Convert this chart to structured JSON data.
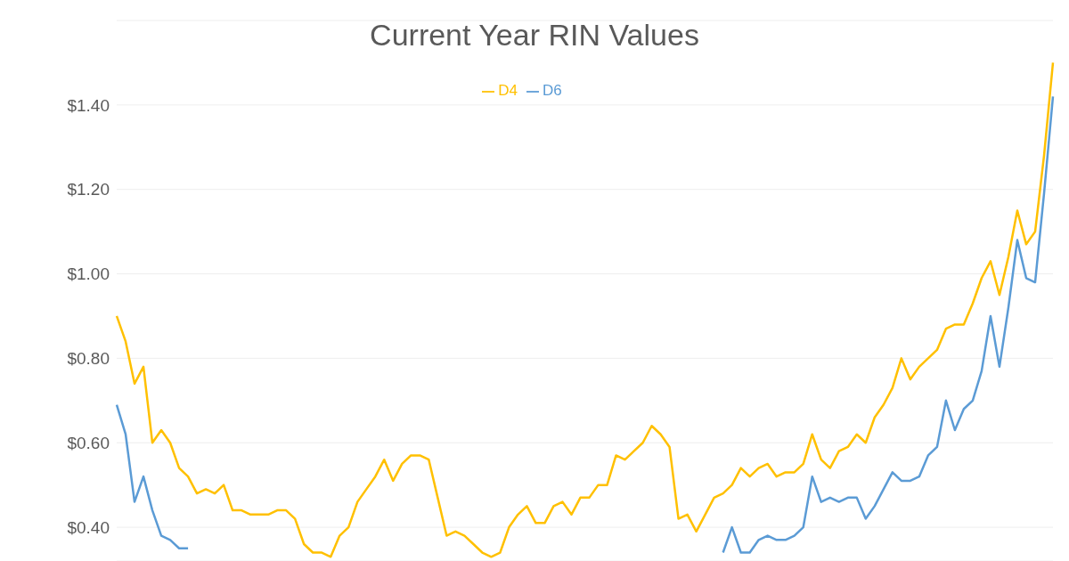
{
  "chart_data": {
    "type": "line",
    "title": "Current Year RIN Values",
    "categories": [
      null,
      null,
      null,
      null,
      null,
      null,
      null,
      null,
      null,
      null,
      null,
      null,
      null,
      null,
      null,
      null,
      null,
      null,
      null,
      null,
      null,
      null,
      null,
      null,
      null,
      null,
      null,
      null,
      null,
      null,
      null,
      null,
      null,
      null,
      null,
      null,
      null,
      null,
      null,
      null,
      null,
      null,
      null,
      null,
      null,
      null,
      null,
      null,
      null,
      null,
      null,
      null,
      null,
      null,
      null,
      null,
      null,
      null,
      null,
      null,
      null,
      null,
      null,
      null,
      null,
      null,
      null,
      null,
      null,
      null,
      null,
      null,
      null,
      null,
      null,
      null,
      null,
      null,
      null,
      null,
      null,
      null,
      null,
      null,
      null,
      null,
      null,
      null,
      null,
      null,
      null,
      null,
      null,
      null,
      null,
      null,
      null,
      null,
      null,
      null,
      null,
      null,
      null,
      null,
      null,
      null
    ],
    "series": [
      {
        "name": "D6",
        "color": "#5b9bd5",
        "values": [
          0.69,
          0.62,
          0.46,
          0.52,
          0.44,
          0.38,
          0.37,
          0.35,
          0.35,
          null,
          null,
          null,
          null,
          null,
          null,
          null,
          null,
          null,
          null,
          null,
          null,
          null,
          null,
          null,
          null,
          null,
          null,
          null,
          null,
          null,
          null,
          null,
          null,
          null,
          null,
          null,
          null,
          null,
          null,
          null,
          null,
          null,
          null,
          null,
          null,
          null,
          null,
          null,
          null,
          null,
          null,
          null,
          null,
          null,
          null,
          null,
          null,
          null,
          null,
          null,
          null,
          null,
          null,
          null,
          null,
          null,
          null,
          null,
          0.34,
          0.4,
          0.34,
          0.34,
          0.37,
          0.38,
          0.37,
          0.37,
          0.38,
          0.4,
          0.52,
          0.46,
          0.47,
          0.46,
          0.47,
          0.47,
          0.42,
          0.45,
          0.49,
          0.53,
          0.51,
          0.51,
          0.52,
          0.57,
          0.59,
          0.7,
          0.63,
          0.68,
          0.7,
          0.77,
          0.9,
          0.78,
          0.92,
          1.08,
          0.99,
          0.98,
          1.19,
          1.42
        ]
      },
      {
        "name": "D4",
        "color": "#ffc000",
        "values": [
          0.9,
          0.84,
          0.74,
          0.78,
          0.6,
          0.63,
          0.6,
          0.54,
          0.52,
          0.48,
          0.49,
          0.48,
          0.5,
          0.44,
          0.44,
          0.43,
          0.43,
          0.43,
          0.44,
          0.44,
          0.42,
          0.36,
          0.34,
          0.34,
          0.33,
          0.38,
          0.4,
          0.46,
          0.49,
          0.52,
          0.56,
          0.51,
          0.55,
          0.57,
          0.57,
          0.56,
          0.47,
          0.38,
          0.39,
          0.38,
          0.36,
          0.34,
          0.33,
          0.34,
          0.4,
          0.43,
          0.45,
          0.41,
          0.41,
          0.45,
          0.46,
          0.43,
          0.47,
          0.47,
          0.5,
          0.5,
          0.57,
          0.56,
          0.58,
          0.6,
          0.64,
          0.62,
          0.59,
          0.42,
          0.43,
          0.39,
          0.43,
          0.47,
          0.48,
          0.5,
          0.54,
          0.52,
          0.54,
          0.55,
          0.52,
          0.53,
          0.53,
          0.55,
          0.62,
          0.56,
          0.54,
          0.58,
          0.59,
          0.62,
          0.6,
          0.66,
          0.69,
          0.73,
          0.8,
          0.75,
          0.78,
          0.8,
          0.82,
          0.87,
          0.88,
          0.88,
          0.93,
          0.99,
          1.03,
          0.95,
          1.04,
          1.15,
          1.07,
          1.1,
          1.28,
          1.5
        ]
      }
    ],
    "ylim": [
      0.32,
      1.6
    ],
    "yticks": [
      {
        "value": 0.4,
        "label": "$0.40"
      },
      {
        "value": 0.6,
        "label": "$0.60"
      },
      {
        "value": 0.8,
        "label": "$0.80"
      },
      {
        "value": 1.0,
        "label": "$1.00"
      },
      {
        "value": 1.2,
        "label": "$1.20"
      },
      {
        "value": 1.4,
        "label": "$1.40"
      }
    ],
    "grid": "y",
    "legend": "top",
    "tick_labels": "y"
  }
}
